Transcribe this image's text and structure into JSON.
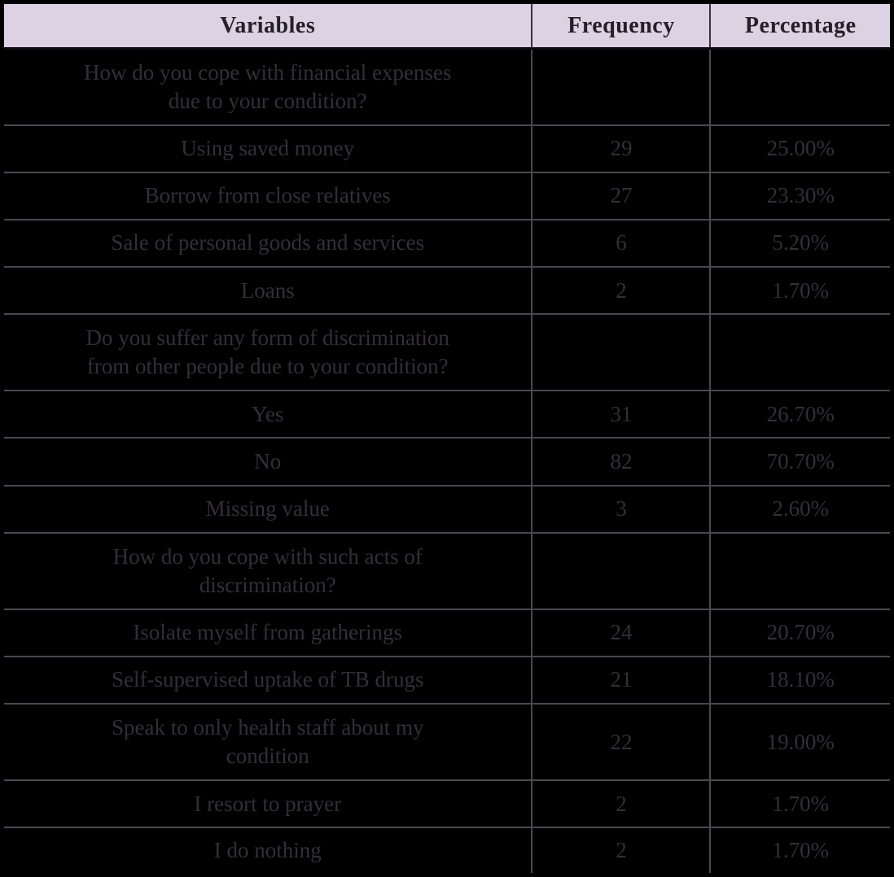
{
  "table": {
    "columns": [
      "Variables",
      "Frequency",
      "Percentage"
    ],
    "rows": [
      {
        "type": "question",
        "label": "How do you cope with financial expenses\ndue to your condition?",
        "frequency": "",
        "percentage": ""
      },
      {
        "type": "item",
        "label": "Using saved money",
        "frequency": "29",
        "percentage": "25.00%"
      },
      {
        "type": "item",
        "label": "Borrow from close relatives",
        "frequency": "27",
        "percentage": "23.30%"
      },
      {
        "type": "item",
        "label": "Sale of personal goods and services",
        "frequency": "6",
        "percentage": "5.20%"
      },
      {
        "type": "item",
        "label": "Loans",
        "frequency": "2",
        "percentage": "1.70%"
      },
      {
        "type": "question",
        "label": "Do you suffer any form of discrimination\nfrom other people due to your condition?",
        "frequency": "",
        "percentage": ""
      },
      {
        "type": "item",
        "label": "Yes",
        "frequency": "31",
        "percentage": "26.70%"
      },
      {
        "type": "item",
        "label": "No",
        "frequency": "82",
        "percentage": "70.70%"
      },
      {
        "type": "item",
        "label": "Missing value",
        "frequency": "3",
        "percentage": "2.60%"
      },
      {
        "type": "question",
        "label": "How do you cope with such acts of\ndiscrimination?",
        "frequency": "",
        "percentage": ""
      },
      {
        "type": "item",
        "label": "Isolate myself from gatherings",
        "frequency": "24",
        "percentage": "20.70%"
      },
      {
        "type": "item",
        "label": "Self-supervised uptake of TB drugs",
        "frequency": "21",
        "percentage": "18.10%"
      },
      {
        "type": "question-with-values",
        "label": "Speak to only health staff about my\ncondition",
        "frequency": "22",
        "percentage": "19.00%"
      },
      {
        "type": "item",
        "label": "I resort to prayer",
        "frequency": "2",
        "percentage": "1.70%"
      },
      {
        "type": "item",
        "label": "I do nothing",
        "frequency": "2",
        "percentage": "1.70%"
      }
    ]
  },
  "colors": {
    "header_bg": "#ddd1e4",
    "header_text": "#242028",
    "body_bg": "#000000",
    "body_text": "#332f35",
    "gridline": "#4b484e",
    "outer_frame": "#000000"
  }
}
